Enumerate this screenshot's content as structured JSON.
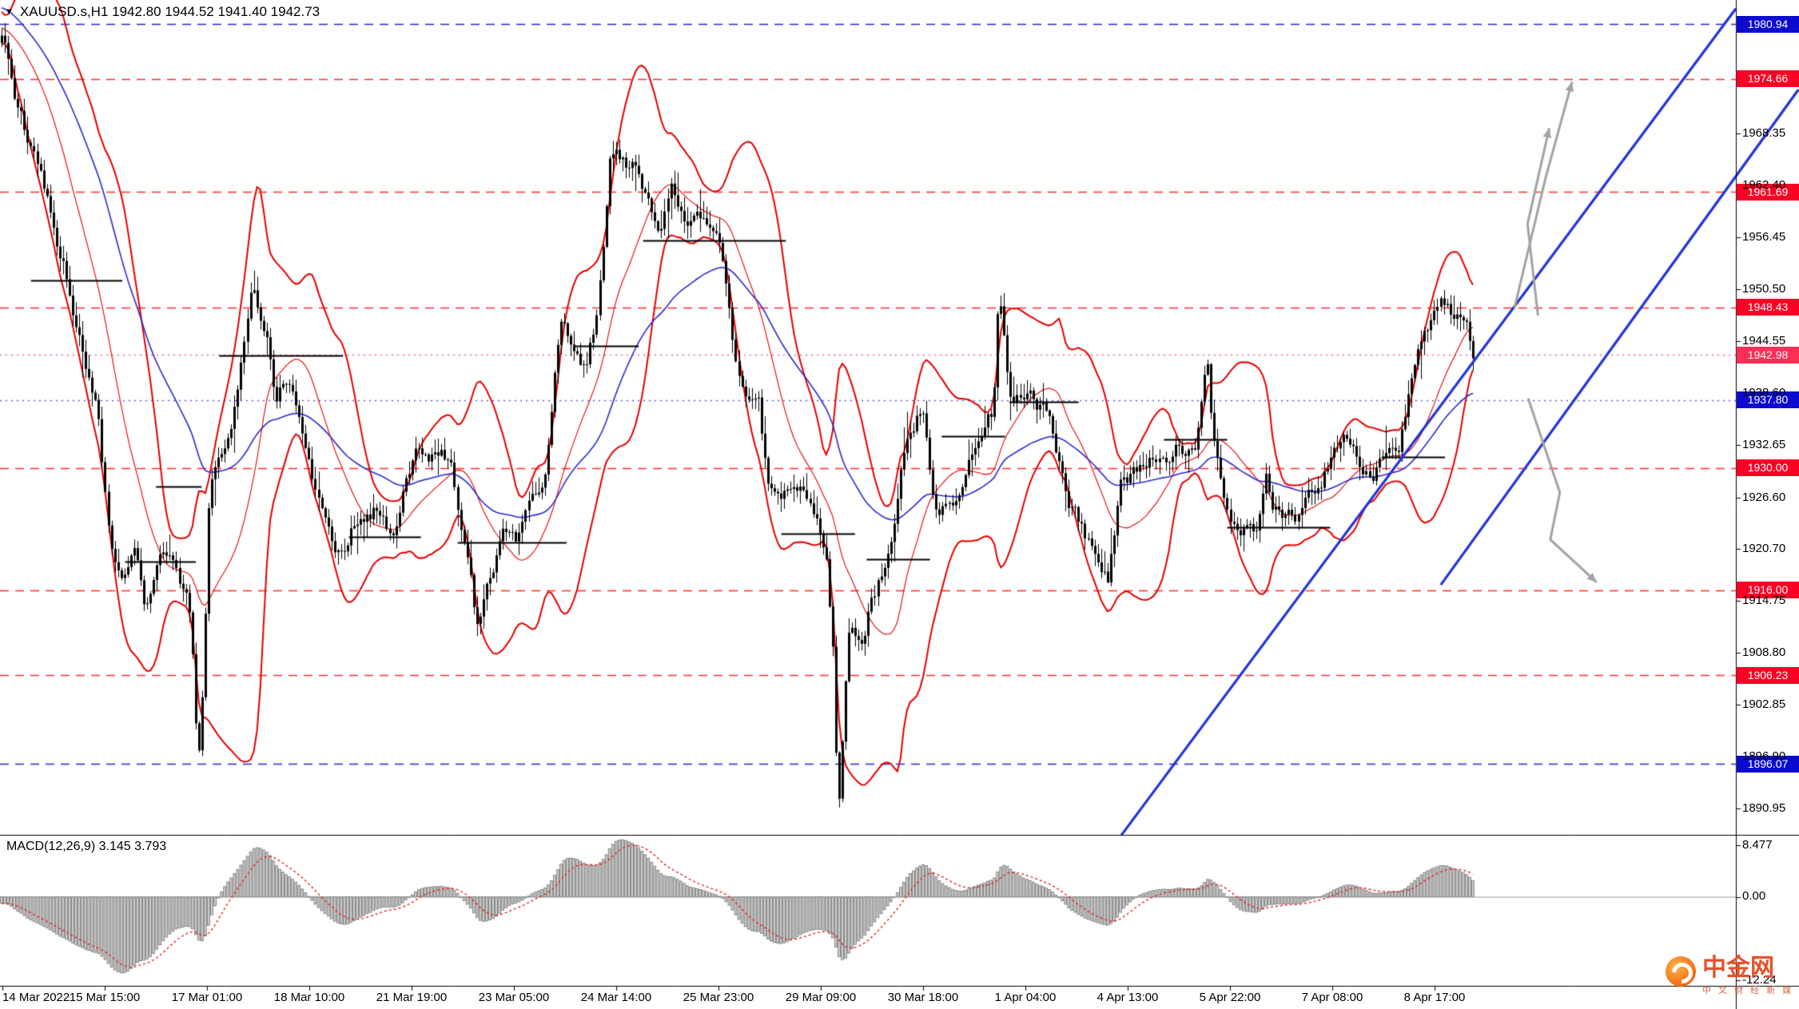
{
  "header": {
    "dropdown_icon": "▼",
    "symbol_line": "XAUUSD.s,H1  1942.80 1944.52 1941.40 1942.73"
  },
  "colors": {
    "background": "#ffffff",
    "candle": "#000000",
    "band_red": "#e60000",
    "ma_blue": "#2b2bd0",
    "trend_blue": "#2433d8",
    "arrow_gray": "#a3a3a3",
    "badge_red": "#fb0025",
    "badge_pink": "#ff2e55",
    "badge_blue": "#0b0bcf",
    "macd_bar_fill": "#cfcfcf",
    "macd_bar_edge": "#6f6f6f",
    "macd_signal": "#e62222"
  },
  "chart_data": {
    "type": "candlestick",
    "title": "XAUUSD.s,H1",
    "symbol": "XAUUSD.s",
    "timeframe": "H1",
    "last_ohlc": {
      "open": "1942.80",
      "high": "1944.52",
      "low": "1941.40",
      "close": "1942.73"
    },
    "bars_estimate": 456,
    "y_axis_ticks": [
      "1968.35",
      "1962.40",
      "1956.45",
      "1950.50",
      "1944.55",
      "1938.60",
      "1932.65",
      "1926.60",
      "1920.70",
      "1914.75",
      "1908.80",
      "1902.85",
      "1896.90",
      "1890.95"
    ],
    "x_axis_labels": [
      "14 Mar 2022",
      "15 Mar 15:00",
      "17 Mar 01:00",
      "18 Mar 10:00",
      "21 Mar 19:00",
      "23 Mar 05:00",
      "24 Mar 14:00",
      "25 Mar 23:00",
      "29 Mar 09:00",
      "30 Mar 18:00",
      "1 Apr 04:00",
      "4 Apr 13:00",
      "5 Apr 22:00",
      "7 Apr 08:00",
      "8 Apr 17:00"
    ],
    "price_levels": [
      {
        "label": "1980.94",
        "price": 1980.94,
        "color": "blue",
        "style": "dashed"
      },
      {
        "label": "1974.66",
        "price": 1974.66,
        "color": "red",
        "style": "dashed"
      },
      {
        "label": "1961.69",
        "price": 1961.69,
        "color": "red",
        "style": "dashed"
      },
      {
        "label": "1948.43",
        "price": 1948.43,
        "color": "red",
        "style": "dashed"
      },
      {
        "label": "1942.98",
        "price": 1942.98,
        "color": "red",
        "style": "dotted"
      },
      {
        "label": "1937.80",
        "price": 1937.8,
        "color": "blue",
        "style": "dotted"
      },
      {
        "label": "1930.00",
        "price": 1930.0,
        "color": "red",
        "style": "dashed"
      },
      {
        "label": "1916.00",
        "price": 1916.0,
        "color": "red",
        "style": "dashed"
      },
      {
        "label": "1906.23",
        "price": 1906.23,
        "color": "red",
        "style": "dashed"
      },
      {
        "label": "1896.07",
        "price": 1896.07,
        "color": "blue",
        "style": "dashed"
      }
    ],
    "price_path_anchors": [
      [
        0,
        1979
      ],
      [
        0.005,
        1975
      ],
      [
        0.012,
        1971
      ],
      [
        0.02,
        1966
      ],
      [
        0.031,
        1959
      ],
      [
        0.043,
        1952
      ],
      [
        0.051,
        1944
      ],
      [
        0.058,
        1941
      ],
      [
        0.066,
        1935
      ],
      [
        0.074,
        1919
      ],
      [
        0.082,
        1917
      ],
      [
        0.09,
        1920
      ],
      [
        0.098,
        1913
      ],
      [
        0.105,
        1919
      ],
      [
        0.113,
        1921
      ],
      [
        0.121,
        1918
      ],
      [
        0.127,
        1915
      ],
      [
        0.131,
        1905
      ],
      [
        0.133,
        1895.5
      ],
      [
        0.137,
        1906
      ],
      [
        0.141,
        1927
      ],
      [
        0.148,
        1930
      ],
      [
        0.156,
        1934
      ],
      [
        0.164,
        1943
      ],
      [
        0.171,
        1950
      ],
      [
        0.179,
        1946
      ],
      [
        0.187,
        1938
      ],
      [
        0.195,
        1941
      ],
      [
        0.203,
        1935
      ],
      [
        0.211,
        1930
      ],
      [
        0.226,
        1922
      ],
      [
        0.234,
        1921
      ],
      [
        0.242,
        1925
      ],
      [
        0.257,
        1927
      ],
      [
        0.265,
        1924
      ],
      [
        0.28,
        1933
      ],
      [
        0.296,
        1932
      ],
      [
        0.304,
        1931
      ],
      [
        0.312,
        1925
      ],
      [
        0.323,
        1912
      ],
      [
        0.331,
        1917
      ],
      [
        0.343,
        1922
      ],
      [
        0.35,
        1921
      ],
      [
        0.362,
        1927
      ],
      [
        0.37,
        1930
      ],
      [
        0.381,
        1948
      ],
      [
        0.389,
        1944
      ],
      [
        0.397,
        1942
      ],
      [
        0.405,
        1947
      ],
      [
        0.413,
        1965
      ],
      [
        0.421,
        1964
      ],
      [
        0.432,
        1963
      ],
      [
        0.44,
        1959
      ],
      [
        0.448,
        1957
      ],
      [
        0.455,
        1961
      ],
      [
        0.463,
        1960
      ],
      [
        0.475,
        1958
      ],
      [
        0.487,
        1959
      ],
      [
        0.491,
        1955
      ],
      [
        0.498,
        1944
      ],
      [
        0.506,
        1940
      ],
      [
        0.514,
        1942
      ],
      [
        0.521,
        1929
      ],
      [
        0.529,
        1928
      ],
      [
        0.537,
        1927
      ],
      [
        0.545,
        1926
      ],
      [
        0.553,
        1924
      ],
      [
        0.56,
        1921
      ],
      [
        0.566,
        1908
      ],
      [
        0.568,
        1890
      ],
      [
        0.572,
        1902
      ],
      [
        0.576,
        1913
      ],
      [
        0.584,
        1912
      ],
      [
        0.592,
        1917
      ],
      [
        0.599,
        1919
      ],
      [
        0.607,
        1923
      ],
      [
        0.615,
        1934
      ],
      [
        0.623,
        1937
      ],
      [
        0.627,
        1936
      ],
      [
        0.635,
        1926
      ],
      [
        0.643,
        1927
      ],
      [
        0.65,
        1928
      ],
      [
        0.658,
        1932
      ],
      [
        0.666,
        1934
      ],
      [
        0.674,
        1936
      ],
      [
        0.678,
        1950
      ],
      [
        0.682,
        1944
      ],
      [
        0.686,
        1938
      ],
      [
        0.694,
        1939
      ],
      [
        0.701,
        1938
      ],
      [
        0.709,
        1936
      ],
      [
        0.717,
        1931
      ],
      [
        0.725,
        1926
      ],
      [
        0.733,
        1923
      ],
      [
        0.74,
        1921
      ],
      [
        0.748,
        1917
      ],
      [
        0.752,
        1916
      ],
      [
        0.76,
        1927
      ],
      [
        0.768,
        1929
      ],
      [
        0.776,
        1931
      ],
      [
        0.783,
        1932.5
      ],
      [
        0.791,
        1931
      ],
      [
        0.799,
        1932
      ],
      [
        0.807,
        1931.5
      ],
      [
        0.811,
        1932
      ],
      [
        0.819,
        1944
      ],
      [
        0.823,
        1934
      ],
      [
        0.829,
        1929
      ],
      [
        0.837,
        1924
      ],
      [
        0.845,
        1924.5
      ],
      [
        0.852,
        1924
      ],
      [
        0.86,
        1929
      ],
      [
        0.864,
        1925
      ],
      [
        0.872,
        1924.5
      ],
      [
        0.88,
        1924
      ],
      [
        0.888,
        1926
      ],
      [
        0.896,
        1929
      ],
      [
        0.903,
        1932.5
      ],
      [
        0.911,
        1934.5
      ],
      [
        0.919,
        1932
      ],
      [
        0.927,
        1930
      ],
      [
        0.935,
        1931
      ],
      [
        0.943,
        1932
      ],
      [
        0.95,
        1934
      ],
      [
        0.958,
        1940
      ],
      [
        0.966,
        1946
      ],
      [
        0.974,
        1948.5
      ],
      [
        0.982,
        1949
      ],
      [
        0.99,
        1947
      ],
      [
        1,
        1943
      ]
    ],
    "swing_segments": [
      [
        0.02,
        0.082,
        1951.5
      ],
      [
        0.084,
        0.132,
        1919.3
      ],
      [
        0.105,
        0.136,
        1927.9
      ],
      [
        0.148,
        0.232,
        1942.9
      ],
      [
        0.236,
        0.285,
        1922.1
      ],
      [
        0.31,
        0.384,
        1921.5
      ],
      [
        0.39,
        0.433,
        1944.0
      ],
      [
        0.436,
        0.533,
        1956.1
      ],
      [
        0.53,
        0.58,
        1922.5
      ],
      [
        0.588,
        0.631,
        1919.5
      ],
      [
        0.639,
        0.682,
        1933.7
      ],
      [
        0.685,
        0.732,
        1937.6
      ],
      [
        0.79,
        0.833,
        1933.3
      ],
      [
        0.833,
        0.903,
        1923.2
      ],
      [
        0.938,
        0.981,
        1931.3
      ]
    ],
    "trend_lines": [
      {
        "x1": 0.646,
        "p1": 1887.9,
        "x2": 1.0,
        "p2": 1982.7
      },
      {
        "x1": 0.83,
        "p1": 1916.6,
        "x2": 1.036,
        "p2": 1973.4
      }
    ],
    "arrows": [
      {
        "name": "up-trend-arrow",
        "points": [
          [
            0.8725,
            1948.4
          ],
          [
            0.8904,
            1963.3
          ],
          [
            0.9056,
            1974.3
          ]
        ]
      },
      {
        "name": "up-trend-arrow-2",
        "points": [
          [
            0.886,
            1947.5
          ],
          [
            0.88,
            1958.0
          ],
          [
            0.8925,
            1969.0
          ]
        ]
      },
      {
        "name": "down-trend-arrow",
        "points": [
          [
            0.8803,
            1938.0
          ],
          [
            0.8986,
            1927.2
          ],
          [
            0.8931,
            1921.8
          ],
          [
            0.9198,
            1916.9
          ]
        ]
      }
    ],
    "macd": {
      "label": "MACD(12,26,9)",
      "values": "3.145 3.793",
      "scale_max": "8.477",
      "scale_zero": "0.00",
      "scale_min": "-12.24"
    }
  },
  "watermark": {
    "name": "中金网",
    "subtitle": "中 文 财 经 新 媒 体"
  }
}
